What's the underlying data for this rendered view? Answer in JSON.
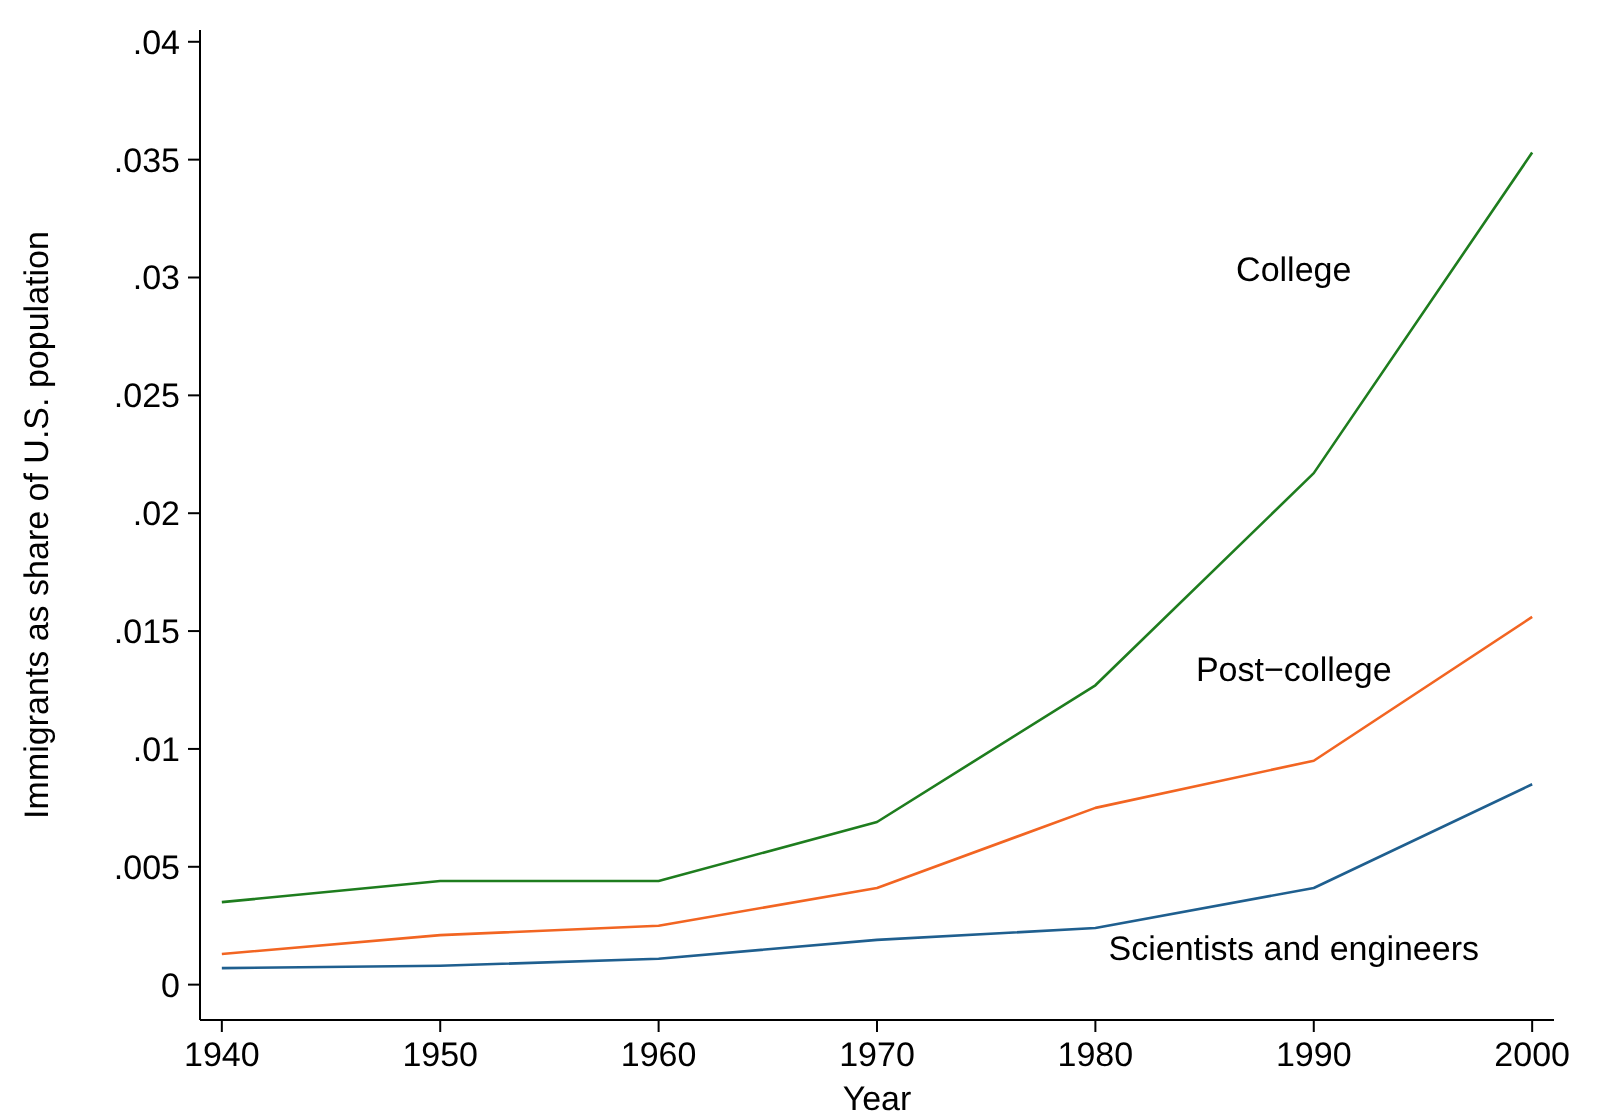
{
  "chart_data": {
    "type": "line",
    "xlabel": "Year",
    "ylabel": "Immigrants as share of U.S. population",
    "x": [
      1940,
      1950,
      1960,
      1970,
      1980,
      1990,
      2000
    ],
    "series": [
      {
        "name": "College",
        "color": "#1e7d1e",
        "values": [
          0.0035,
          0.0044,
          0.0044,
          0.0069,
          0.0127,
          0.0217,
          0.0353
        ]
      },
      {
        "name": "Post−college",
        "color": "#f26522",
        "values": [
          0.0013,
          0.0021,
          0.0025,
          0.0041,
          0.0075,
          0.0095,
          0.0156
        ]
      },
      {
        "name": "Scientists and engineers",
        "color": "#1f5f8f",
        "values": [
          0.0007,
          0.0008,
          0.0011,
          0.0019,
          0.0024,
          0.0041,
          0.0085
        ]
      }
    ],
    "xlim": [
      1939,
      2001
    ],
    "xticks": [
      1940,
      1950,
      1960,
      1970,
      1980,
      1990,
      2000
    ],
    "ylim": [
      -0.0015,
      0.0405
    ],
    "yticks": [
      {
        "value": 0,
        "label": "0"
      },
      {
        "value": 0.005,
        "label": ".005"
      },
      {
        "value": 0.01,
        "label": ".01"
      },
      {
        "value": 0.015,
        "label": ".015"
      },
      {
        "value": 0.02,
        "label": ".02"
      },
      {
        "value": 0.025,
        "label": ".025"
      },
      {
        "value": 0.03,
        "label": ".03"
      },
      {
        "value": 0.035,
        "label": ".035"
      },
      {
        "value": 0.04,
        "label": ".04"
      }
    ],
    "grid": false,
    "legend": false,
    "marker": "none",
    "line_style": "solid"
  }
}
